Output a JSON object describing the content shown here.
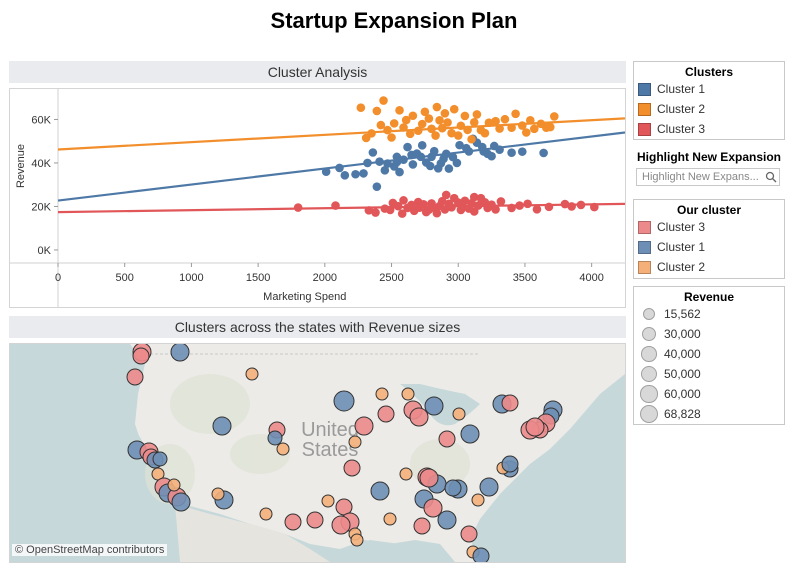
{
  "dashboard": {
    "title": "Startup Expansion Plan"
  },
  "scatter_panel": {
    "title": "Cluster Analysis"
  },
  "map_panel": {
    "title": "Clusters across the states with Revenue sizes",
    "credit": "© OpenStreetMap contributors",
    "watermark": "United States"
  },
  "legends": {
    "clusters": {
      "title": "Clusters",
      "items": [
        {
          "label": "Cluster 1",
          "color": "#4e79a7"
        },
        {
          "label": "Cluster 2",
          "color": "#f28e2b"
        },
        {
          "label": "Cluster 3",
          "color": "#e15759"
        }
      ]
    },
    "highlight": {
      "title": "Highlight New Expansion",
      "placeholder": "Highlight New Expans..."
    },
    "our_cluster": {
      "title": "Our cluster",
      "items": [
        {
          "label": "Cluster 3",
          "color": "#ec8a8b"
        },
        {
          "label": "Cluster 1",
          "color": "#6e8fb5"
        },
        {
          "label": "Cluster 2",
          "color": "#f5b07a"
        }
      ]
    },
    "revenue": {
      "title": "Revenue",
      "items": [
        "15,562",
        "30,000",
        "40,000",
        "50,000",
        "60,000",
        "68,828"
      ],
      "values": [
        15562,
        30000,
        40000,
        50000,
        60000,
        68828
      ]
    }
  },
  "chart_data": [
    {
      "type": "scatter",
      "xlabel": "Marketing Spend",
      "ylabel": "Revenue",
      "xlim": [
        0,
        4250
      ],
      "ylim": [
        -6000,
        74000
      ],
      "xticks": [
        0,
        500,
        1000,
        1500,
        2000,
        2500,
        3000,
        3500,
        4000
      ],
      "xtick_labels": [
        "0",
        "500",
        "1000",
        "1500",
        "2000",
        "2500",
        "3000",
        "3500",
        "4000"
      ],
      "yticks": [
        0,
        20000,
        40000,
        60000
      ],
      "ytick_labels": [
        "0K",
        "20K",
        "40K",
        "60K"
      ],
      "series": [
        {
          "name": "Cluster 1",
          "color": "#4e79a7",
          "trend": [
            [
              0,
              22700
            ],
            [
              4250,
              54000
            ]
          ],
          "points": [
            [
              2010,
              36000
            ],
            [
              2110,
              37700
            ],
            [
              2150,
              34300
            ],
            [
              2230,
              34800
            ],
            [
              2290,
              35200
            ],
            [
              2320,
              40000
            ],
            [
              2360,
              44800
            ],
            [
              2410,
              40600
            ],
            [
              2450,
              36600
            ],
            [
              2470,
              39700
            ],
            [
              2520,
              38400
            ],
            [
              2540,
              40400
            ],
            [
              2560,
              35800
            ],
            [
              2590,
              41500
            ],
            [
              2620,
              47300
            ],
            [
              2650,
              43700
            ],
            [
              2660,
              39300
            ],
            [
              2690,
              44300
            ],
            [
              2720,
              42800
            ],
            [
              2730,
              48100
            ],
            [
              2760,
              40200
            ],
            [
              2790,
              38600
            ],
            [
              2800,
              42800
            ],
            [
              2820,
              45400
            ],
            [
              2850,
              37500
            ],
            [
              2870,
              39800
            ],
            [
              2890,
              41900
            ],
            [
              2910,
              44200
            ],
            [
              2930,
              37400
            ],
            [
              2960,
              42700
            ],
            [
              2990,
              40000
            ],
            [
              3010,
              48200
            ],
            [
              3060,
              46800
            ],
            [
              3080,
              45300
            ],
            [
              3110,
              51100
            ],
            [
              3140,
              49300
            ],
            [
              3180,
              47300
            ],
            [
              3190,
              45300
            ],
            [
              3220,
              44200
            ],
            [
              3250,
              43100
            ],
            [
              3270,
              47800
            ],
            [
              3310,
              46100
            ],
            [
              3400,
              44700
            ],
            [
              3480,
              45200
            ],
            [
              3640,
              44600
            ],
            [
              2390,
              29100
            ],
            [
              2540,
              42800
            ]
          ]
        },
        {
          "name": "Cluster 2",
          "color": "#f28e2b",
          "trend": [
            [
              0,
              46200
            ],
            [
              4250,
              60500
            ]
          ],
          "points": [
            [
              2270,
              65400
            ],
            [
              2310,
              51500
            ],
            [
              2350,
              53600
            ],
            [
              2390,
              63900
            ],
            [
              2420,
              57400
            ],
            [
              2440,
              68700
            ],
            [
              2470,
              55100
            ],
            [
              2500,
              51700
            ],
            [
              2520,
              58200
            ],
            [
              2560,
              64200
            ],
            [
              2590,
              56300
            ],
            [
              2610,
              59700
            ],
            [
              2640,
              53400
            ],
            [
              2660,
              61700
            ],
            [
              2700,
              54800
            ],
            [
              2730,
              57900
            ],
            [
              2750,
              63500
            ],
            [
              2780,
              60400
            ],
            [
              2800,
              55700
            ],
            [
              2830,
              52600
            ],
            [
              2840,
              65700
            ],
            [
              2860,
              59600
            ],
            [
              2880,
              56000
            ],
            [
              2900,
              62800
            ],
            [
              2920,
              58600
            ],
            [
              2950,
              53700
            ],
            [
              2970,
              64700
            ],
            [
              3000,
              52600
            ],
            [
              3020,
              57100
            ],
            [
              3050,
              61600
            ],
            [
              3070,
              55200
            ],
            [
              3100,
              50900
            ],
            [
              3120,
              58700
            ],
            [
              3140,
              62300
            ],
            [
              3170,
              55100
            ],
            [
              3200,
              53700
            ],
            [
              3230,
              58500
            ],
            [
              3280,
              59200
            ],
            [
              3310,
              55800
            ],
            [
              3350,
              60100
            ],
            [
              3400,
              56200
            ],
            [
              3430,
              62600
            ],
            [
              3480,
              57200
            ],
            [
              3510,
              54000
            ],
            [
              3540,
              59600
            ],
            [
              3570,
              55700
            ],
            [
              3620,
              58000
            ],
            [
              3660,
              56200
            ],
            [
              3690,
              56500
            ],
            [
              3720,
              61400
            ]
          ]
        },
        {
          "name": "Cluster 3",
          "color": "#e15759",
          "trend": [
            [
              0,
              17400
            ],
            [
              4250,
              21200
            ]
          ],
          "points": [
            [
              1800,
              19500
            ],
            [
              2080,
              20400
            ],
            [
              2330,
              18200
            ],
            [
              2380,
              17200
            ],
            [
              2450,
              19000
            ],
            [
              2490,
              18400
            ],
            [
              2510,
              21600
            ],
            [
              2550,
              20100
            ],
            [
              2580,
              16700
            ],
            [
              2590,
              22800
            ],
            [
              2620,
              19300
            ],
            [
              2650,
              20700
            ],
            [
              2670,
              18000
            ],
            [
              2700,
              22000
            ],
            [
              2710,
              19400
            ],
            [
              2740,
              21000
            ],
            [
              2760,
              17400
            ],
            [
              2780,
              18500
            ],
            [
              2800,
              21400
            ],
            [
              2820,
              19400
            ],
            [
              2840,
              16900
            ],
            [
              2860,
              20200
            ],
            [
              2880,
              22400
            ],
            [
              2900,
              18600
            ],
            [
              2910,
              25300
            ],
            [
              2930,
              21200
            ],
            [
              2950,
              19600
            ],
            [
              2970,
              23800
            ],
            [
              3000,
              21800
            ],
            [
              3020,
              18400
            ],
            [
              3030,
              20600
            ],
            [
              3050,
              22600
            ],
            [
              3080,
              19000
            ],
            [
              3100,
              21500
            ],
            [
              3120,
              17700
            ],
            [
              3150,
              20400
            ],
            [
              3170,
              23800
            ],
            [
              3200,
              21900
            ],
            [
              3220,
              19300
            ],
            [
              3250,
              20800
            ],
            [
              3280,
              18600
            ],
            [
              3320,
              22300
            ],
            [
              3400,
              19300
            ],
            [
              3460,
              20400
            ],
            [
              3520,
              21200
            ],
            [
              3590,
              18700
            ],
            [
              3680,
              19800
            ],
            [
              3800,
              21100
            ],
            [
              3850,
              20000
            ],
            [
              3920,
              20700
            ],
            [
              4020,
              19700
            ],
            [
              3120,
              24300
            ]
          ]
        }
      ]
    }
  ]
}
